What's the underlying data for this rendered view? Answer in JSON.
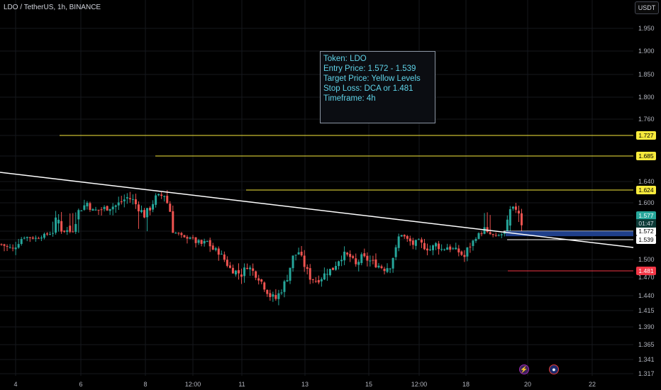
{
  "header": {
    "symbol_title": "LDO / TetherUS, 1h, BINANCE",
    "currency": "USDT"
  },
  "info_box": {
    "token": "Token: LDO",
    "entry": "Entry Price: 1.572 - 1.539",
    "target": "Target Price: Yellow Levels",
    "stop": "Stop Loss: DCA or 1.481",
    "timeframe": "Timeframe: 4h"
  },
  "chart_data": {
    "type": "candlestick",
    "title": "LDO / TetherUS, 1h, BINANCE",
    "y_ticks": [
      "1.950",
      "1.900",
      "1.850",
      "1.800",
      "1.760",
      "1.727",
      "1.685",
      "1.640",
      "1.624",
      "1.600",
      "1.577",
      "1.572",
      "1.539",
      "1.500",
      "1.481",
      "1.470",
      "1.440",
      "1.415",
      "1.390",
      "1.365",
      "1.341",
      "1.317"
    ],
    "x_ticks": [
      "4",
      "6",
      "8",
      "12:00",
      "11",
      "13",
      "15",
      "12:00",
      "18",
      "20",
      "22"
    ],
    "current_price": "1.577",
    "countdown": "01:47",
    "price_levels": [
      {
        "value": 1.727,
        "label": "1.727",
        "role": "target",
        "color": "#f7ea3c"
      },
      {
        "value": 1.685,
        "label": "1.685",
        "role": "target",
        "color": "#f7ea3c"
      },
      {
        "value": 1.624,
        "label": "1.624",
        "role": "target",
        "color": "#f7ea3c"
      },
      {
        "value": 1.572,
        "label": "1.572",
        "role": "entry",
        "color": "#ffffff"
      },
      {
        "value": 1.539,
        "label": "1.539",
        "role": "entry",
        "color": "#ffffff"
      },
      {
        "value": 1.481,
        "label": "1.481",
        "role": "stop",
        "color": "#f23645"
      }
    ],
    "trendline": {
      "start": {
        "date": "3",
        "price": 1.665
      },
      "end": {
        "date": "22",
        "price": 1.524
      }
    },
    "colors": {
      "up": "#26a69a",
      "down": "#ef5350",
      "background": "#000000",
      "current_price": "#26a69a"
    },
    "ylim": [
      1.3,
      1.97
    ],
    "grid": true,
    "close_path": [
      [
        0,
        1.53
      ],
      [
        4,
        1.52
      ],
      [
        8,
        1.55
      ],
      [
        12,
        1.545
      ],
      [
        16,
        1.56
      ],
      [
        20,
        1.575
      ],
      [
        24,
        1.57
      ],
      [
        28,
        1.59
      ],
      [
        30,
        1.6
      ],
      [
        32,
        1.585
      ],
      [
        36,
        1.59
      ],
      [
        40,
        1.595
      ],
      [
        44,
        1.61
      ],
      [
        46,
        1.605
      ],
      [
        48,
        1.59
      ],
      [
        50,
        1.58
      ],
      [
        52,
        1.59
      ],
      [
        54,
        1.61
      ],
      [
        57,
        1.615
      ],
      [
        58,
        1.6
      ],
      [
        60,
        1.57
      ],
      [
        62,
        1.56
      ],
      [
        64,
        1.545
      ],
      [
        66,
        1.55
      ],
      [
        68,
        1.535
      ],
      [
        70,
        1.53
      ],
      [
        72,
        1.535
      ],
      [
        74,
        1.52
      ],
      [
        76,
        1.515
      ],
      [
        78,
        1.5
      ],
      [
        80,
        1.485
      ],
      [
        82,
        1.48
      ],
      [
        84,
        1.475
      ],
      [
        86,
        1.49
      ],
      [
        88,
        1.48
      ],
      [
        90,
        1.47
      ],
      [
        92,
        1.455
      ],
      [
        94,
        1.44
      ],
      [
        96,
        1.435
      ],
      [
        98,
        1.45
      ],
      [
        100,
        1.47
      ],
      [
        102,
        1.505
      ],
      [
        104,
        1.515
      ],
      [
        106,
        1.49
      ],
      [
        108,
        1.47
      ],
      [
        110,
        1.465
      ],
      [
        112,
        1.47
      ],
      [
        114,
        1.48
      ],
      [
        116,
        1.485
      ],
      [
        118,
        1.5
      ],
      [
        120,
        1.51
      ],
      [
        122,
        1.505
      ],
      [
        124,
        1.49
      ],
      [
        126,
        1.505
      ],
      [
        128,
        1.5
      ],
      [
        130,
        1.495
      ],
      [
        132,
        1.49
      ],
      [
        134,
        1.485
      ],
      [
        136,
        1.49
      ],
      [
        138,
        1.52
      ],
      [
        139,
        1.55
      ],
      [
        140,
        1.56
      ],
      [
        142,
        1.54
      ],
      [
        144,
        1.53
      ],
      [
        146,
        1.535
      ],
      [
        148,
        1.525
      ],
      [
        150,
        1.52
      ],
      [
        152,
        1.53
      ],
      [
        154,
        1.52
      ],
      [
        156,
        1.525
      ],
      [
        158,
        1.52
      ],
      [
        160,
        1.515
      ],
      [
        162,
        1.505
      ],
      [
        163,
        1.52
      ],
      [
        165,
        1.535
      ],
      [
        167,
        1.56
      ],
      [
        169,
        1.57
      ],
      [
        171,
        1.56
      ],
      [
        173,
        1.55
      ],
      [
        175,
        1.56
      ],
      [
        177,
        1.57
      ],
      [
        178,
        1.585
      ],
      [
        180,
        1.59
      ],
      [
        182,
        1.577
      ]
    ]
  },
  "events": [
    {
      "icon": "lightning-event-icon",
      "glyph": "⚡"
    },
    {
      "icon": "us-flag-event-icon",
      "glyph": "●"
    }
  ]
}
